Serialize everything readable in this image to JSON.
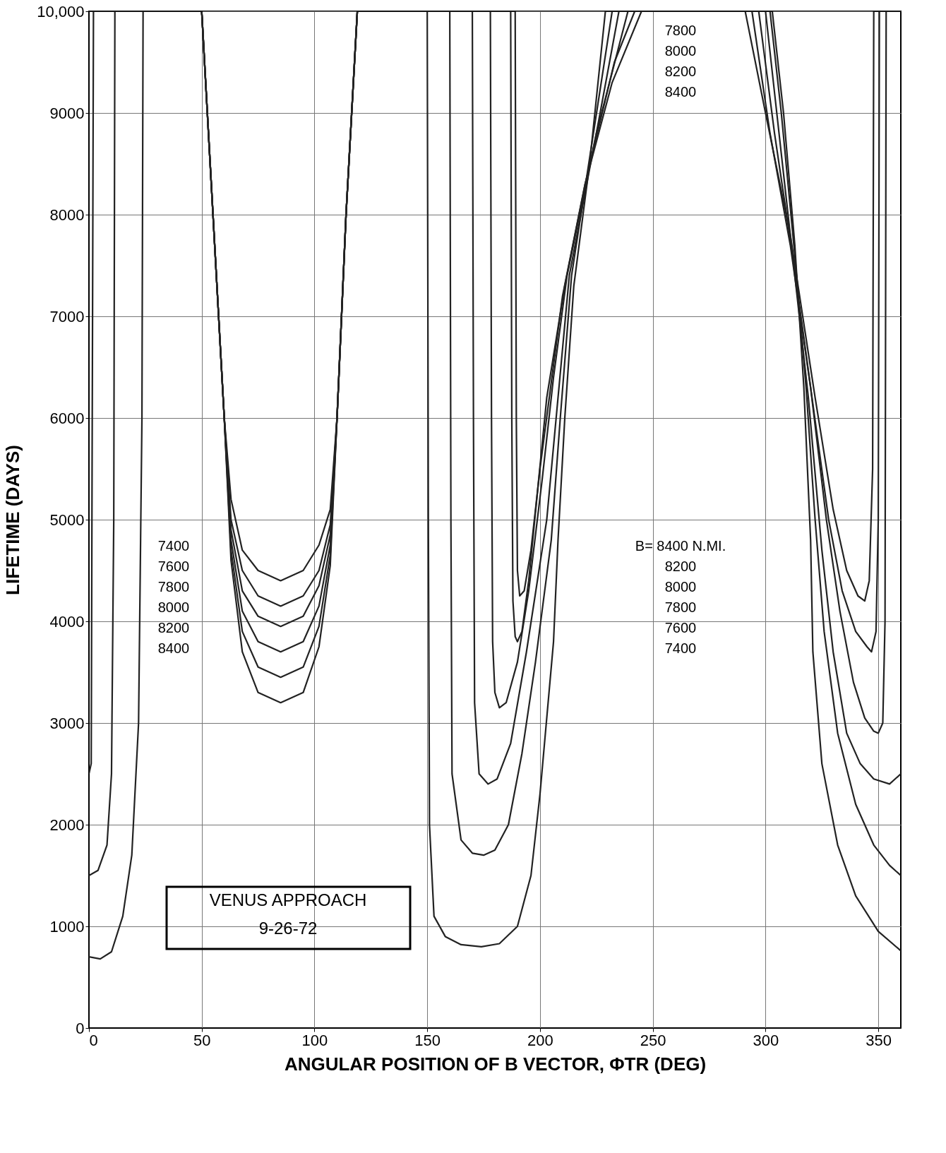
{
  "chart_data": {
    "type": "line",
    "xlabel": "ANGULAR POSITION OF B VECTOR, ΦTR (DEG)",
    "ylabel": "LIFETIME (DAYS)",
    "xlim": [
      0,
      360
    ],
    "xticks": [
      0,
      50,
      100,
      150,
      200,
      250,
      300,
      350
    ],
    "ylim": [
      0,
      10000
    ],
    "yticks": [
      0,
      1000,
      2000,
      3000,
      4000,
      5000,
      6000,
      7000,
      8000,
      9000,
      {
        "value": 10000,
        "label": "10,000"
      }
    ],
    "grid": true,
    "marker": "none",
    "line_style": "solid",
    "series": [
      {
        "color": "#222222",
        "x": [
          0,
          5,
          10,
          15,
          19,
          22,
          23.5,
          24,
          50,
          55,
          60,
          63,
          68,
          75,
          85,
          95,
          102,
          107,
          110,
          114,
          119,
          150,
          150.5,
          151,
          153,
          158,
          165,
          174,
          182,
          190,
          196,
          200,
          204,
          206,
          208,
          211,
          215,
          222,
          229,
          303,
          308,
          313,
          317,
          320,
          321,
          325,
          332,
          340,
          350,
          360
        ],
        "values": [
          700,
          680,
          750,
          1100,
          1700,
          3000,
          6000,
          10000,
          10000,
          8000,
          6000,
          4600,
          3700,
          3300,
          3200,
          3300,
          3750,
          4550,
          6000,
          8000,
          10000,
          10000,
          5000,
          2000,
          1100,
          900,
          820,
          800,
          830,
          1000,
          1500,
          2300,
          3300,
          3800,
          4800,
          6000,
          7300,
          8500,
          10000,
          10000,
          9000,
          7700,
          6300,
          4800,
          3700,
          2600,
          1800,
          1300,
          950,
          760
        ]
      },
      {
        "color": "#222222",
        "x": [
          0,
          4,
          8,
          10,
          11,
          11.5,
          50,
          55,
          60,
          63,
          68,
          75,
          85,
          95,
          102,
          107,
          110,
          114,
          119,
          160,
          160.5,
          161,
          165,
          170,
          175,
          180,
          186,
          192,
          198,
          205,
          209,
          214,
          223,
          232,
          302,
          307,
          313,
          318,
          322,
          326,
          332,
          340,
          348,
          355,
          360
        ],
        "values": [
          1500,
          1550,
          1800,
          2500,
          5000,
          10000,
          10000,
          8000,
          6000,
          4700,
          3900,
          3550,
          3450,
          3550,
          3950,
          4650,
          6000,
          8000,
          10000,
          10000,
          5000,
          2500,
          1850,
          1720,
          1700,
          1750,
          2000,
          2700,
          3600,
          4800,
          6000,
          7400,
          8700,
          10000,
          10000,
          9000,
          7600,
          6300,
          5000,
          3900,
          2900,
          2200,
          1800,
          1600,
          1500
        ]
      },
      {
        "color": "#222222",
        "x": [
          0,
          1,
          2,
          50,
          55,
          60,
          63,
          68,
          75,
          85,
          95,
          102,
          107,
          110,
          114,
          119,
          170,
          170.5,
          171,
          173,
          177,
          181,
          187,
          194,
          203,
          208,
          213,
          225,
          235,
          300,
          305,
          312,
          319,
          325,
          330,
          336,
          342,
          348,
          355,
          360
        ],
        "values": [
          2500,
          2600,
          10000,
          10000,
          8000,
          6000,
          4800,
          4100,
          3800,
          3700,
          3800,
          4150,
          4750,
          6000,
          8000,
          10000,
          10000,
          6000,
          3200,
          2500,
          2400,
          2450,
          2800,
          3700,
          5000,
          6200,
          7400,
          8800,
          10000,
          10000,
          9000,
          7600,
          6200,
          4700,
          3700,
          2900,
          2600,
          2450,
          2400,
          2500
        ]
      },
      {
        "color": "#222222",
        "x": [
          0,
          50,
          55,
          60,
          63,
          68,
          75,
          85,
          95,
          102,
          107,
          110,
          114,
          119,
          178,
          178.5,
          179,
          180,
          182,
          185,
          190,
          195,
          201,
          206,
          212,
          225,
          239,
          297,
          304,
          312,
          320,
          327,
          333,
          339,
          344,
          348,
          350,
          352,
          353,
          353.5,
          360
        ],
        "values": [
          10000,
          10000,
          8000,
          6000,
          4900,
          4300,
          4050,
          3950,
          4050,
          4350,
          4850,
          6000,
          8000,
          10000,
          10000,
          6000,
          3800,
          3300,
          3150,
          3200,
          3600,
          4300,
          5400,
          6400,
          7400,
          8800,
          10000,
          10000,
          8800,
          7600,
          6300,
          5000,
          4100,
          3400,
          3050,
          2920,
          2900,
          3000,
          4000,
          10000,
          10000
        ]
      },
      {
        "color": "#222222",
        "x": [
          0,
          50,
          55,
          60,
          63,
          68,
          75,
          85,
          95,
          102,
          107,
          110,
          114,
          119,
          187,
          187.5,
          188,
          189,
          190,
          192,
          195,
          199,
          203,
          211,
          220,
          233,
          242,
          294,
          302,
          311,
          320,
          328,
          334,
          340,
          345,
          347,
          349,
          350,
          350.5,
          360
        ],
        "values": [
          10000,
          10000,
          8000,
          6000,
          5000,
          4500,
          4250,
          4150,
          4250,
          4500,
          4950,
          6000,
          8000,
          10000,
          10000,
          6000,
          4200,
          3850,
          3800,
          3900,
          4400,
          5300,
          6200,
          7300,
          8300,
          9500,
          10000,
          10000,
          8800,
          7700,
          6300,
          5000,
          4300,
          3900,
          3750,
          3700,
          3900,
          5000,
          10000,
          10000
        ]
      },
      {
        "color": "#222222",
        "x": [
          0,
          50,
          55,
          60,
          63,
          68,
          75,
          85,
          95,
          102,
          107,
          110,
          114,
          119,
          189,
          189.5,
          190,
          191,
          193,
          196,
          200,
          210,
          220,
          232,
          245,
          291,
          300,
          311,
          322,
          330,
          336,
          341,
          344,
          346,
          347.5,
          348,
          360
        ],
        "values": [
          10000,
          10000,
          8000,
          6000,
          5200,
          4700,
          4500,
          4400,
          4500,
          4750,
          5100,
          6000,
          8000,
          10000,
          10000,
          6000,
          4500,
          4250,
          4300,
          4700,
          5500,
          7200,
          8300,
          9300,
          10000,
          10000,
          9000,
          7800,
          6200,
          5100,
          4500,
          4250,
          4200,
          4400,
          5500,
          10000,
          10000
        ]
      }
    ],
    "annotations": [
      "7400",
      "7600",
      "7800",
      "8000",
      "8200",
      "8400",
      "B= 8400 N.MI.",
      "8200",
      "8000",
      "7800",
      "7600",
      "7400",
      "7800",
      "8000",
      "8200",
      "8400",
      "VENUS APPROACH\n9-26-72"
    ]
  }
}
